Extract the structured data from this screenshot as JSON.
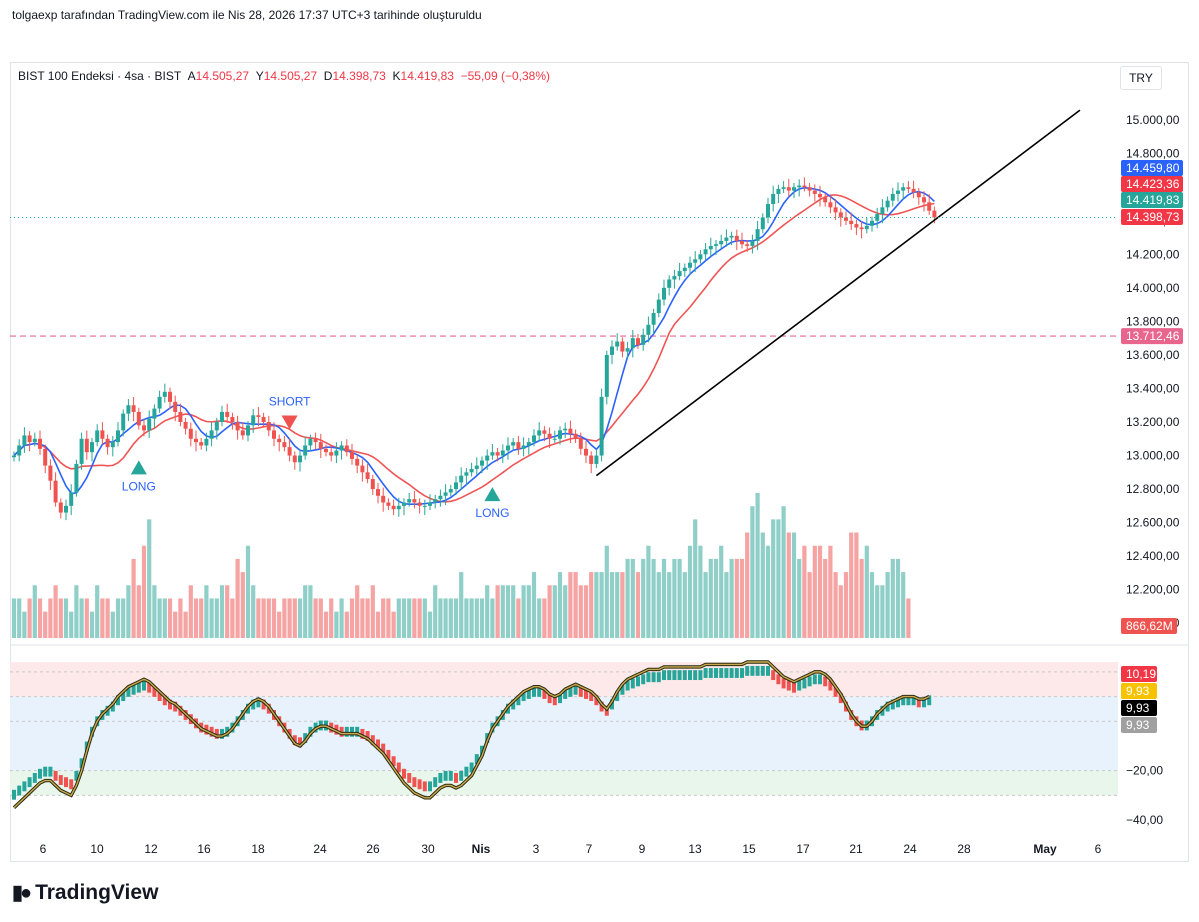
{
  "header": {
    "attribution": "tolgaexp tarafından TradingView.com ile Nis 28, 2026 17:37 UTC+3 tarihinde oluşturuldu"
  },
  "legend": {
    "symbol": "BIST 100 Endeksi · 4sa · BIST",
    "open_label": "A",
    "open": "14.505,27",
    "high_label": "Y",
    "high": "14.505,27",
    "low_label": "D",
    "low": "14.398,73",
    "close_label": "K",
    "close": "14.419,83",
    "change": "−55,09 (−0,38%)"
  },
  "currency": "TRY",
  "colors": {
    "up": "#26a69a",
    "down": "#ef5350",
    "up_volume": "#8fcfc8",
    "down_volume": "#f5a3a3",
    "ma_fast": "#2962ff",
    "ma_slow": "#f05454",
    "level": "#e8658e",
    "trendline": "#000000",
    "osc_line": "#7a6520",
    "signal": "#2962ff"
  },
  "logo": {
    "text": "TradingView",
    "icon": "tradingview-logo-icon"
  },
  "chart_data": [
    {
      "type": "candlestick",
      "x_ticks": [
        "6",
        "10",
        "12",
        "16",
        "18",
        "24",
        "26",
        "30",
        "Nis",
        "3",
        "7",
        "9",
        "13",
        "15",
        "17",
        "21",
        "24",
        "28",
        "May",
        "6"
      ],
      "y_ticks": [
        "15.000,00",
        "14.800,00",
        "14.600,00",
        "14.400,00",
        "14.200,00",
        "14.000,00",
        "13.800,00",
        "13.600,00",
        "13.400,00",
        "13.200,00",
        "13.000,00",
        "12.800,00",
        "12.600,00",
        "12.400,00",
        "12.200,00",
        "12.000,00"
      ],
      "ylim": [
        11900,
        15150
      ],
      "price_tags": [
        {
          "label": "14.459,80",
          "value": 14459.8,
          "color": "#2962ff"
        },
        {
          "label": "14.423,36",
          "value": 14423.36,
          "color": "#f23645"
        },
        {
          "label": "14.419,83",
          "value": 14419.83,
          "color": "#26a69a"
        },
        {
          "label": "14.398,73",
          "value": 14398.73,
          "color": "#f23645"
        }
      ],
      "horizontal_level": {
        "label": "13.712,46",
        "value": 13712.46
      },
      "volume_tag": "866,62M",
      "signals": [
        {
          "text": "LONG",
          "kind": "buy",
          "bar": 24
        },
        {
          "text": "SHORT",
          "kind": "sell",
          "bar": 53
        },
        {
          "text": "LONG",
          "kind": "buy",
          "bar": 92
        }
      ],
      "trendline": [
        {
          "bar": 112,
          "value": 12880
        },
        {
          "bar": 205,
          "value": 15060
        }
      ],
      "candles_close": [
        13000,
        13060,
        13120,
        13080,
        13100,
        13040,
        12940,
        12850,
        12720,
        12660,
        12700,
        12780,
        12950,
        13100,
        13020,
        13080,
        13150,
        13100,
        13050,
        13080,
        13150,
        13250,
        13300,
        13260,
        13180,
        13150,
        13220,
        13280,
        13350,
        13380,
        13320,
        13260,
        13200,
        13160,
        13100,
        13080,
        13060,
        13100,
        13150,
        13200,
        13260,
        13230,
        13200,
        13150,
        13120,
        13180,
        13240,
        13230,
        13200,
        13150,
        13100,
        13080,
        13050,
        13000,
        12960,
        13000,
        13060,
        13100,
        13080,
        13040,
        13020,
        13000,
        13030,
        13060,
        13020,
        12980,
        12940,
        12900,
        12860,
        12800,
        12760,
        12720,
        12700,
        12680,
        12700,
        12720,
        12740,
        12720,
        12700,
        12700,
        12720,
        12740,
        12760,
        12780,
        12800,
        12840,
        12880,
        12900,
        12920,
        12940,
        12970,
        13000,
        13020,
        13000,
        13030,
        13060,
        13080,
        13040,
        13060,
        13080,
        13120,
        13150,
        13130,
        13100,
        13100,
        13150,
        13160,
        13130,
        13100,
        13040,
        13000,
        12950,
        13000,
        13350,
        13600,
        13650,
        13680,
        13620,
        13640,
        13700,
        13660,
        13720,
        13780,
        13850,
        13930,
        14000,
        14050,
        14070,
        14100,
        14120,
        14150,
        14170,
        14200,
        14230,
        14250,
        14260,
        14280,
        14300,
        14310,
        14280,
        14260,
        14250,
        14280,
        14350,
        14420,
        14500,
        14560,
        14590,
        14600,
        14580,
        14600,
        14610,
        14600,
        14580,
        14560,
        14540,
        14510,
        14480,
        14450,
        14420,
        14400,
        14380,
        14360,
        14350,
        14370,
        14400,
        14440,
        14480,
        14520,
        14560,
        14580,
        14600,
        14590,
        14570,
        14540,
        14510,
        14460,
        14420
      ],
      "volume": [
        3,
        3,
        2,
        3,
        4,
        3,
        2,
        3,
        4,
        3,
        3,
        2,
        4,
        3,
        3,
        2,
        4,
        3,
        3,
        2,
        3,
        3,
        4,
        6,
        4,
        7,
        9,
        4,
        3,
        3,
        3,
        2,
        3,
        2,
        4,
        3,
        3,
        4,
        3,
        3,
        4,
        4,
        3,
        6,
        5,
        7,
        4,
        3,
        3,
        3,
        3,
        2,
        3,
        3,
        3,
        3,
        4,
        4,
        3,
        3,
        2,
        3,
        2,
        3,
        2,
        3,
        4,
        3,
        3,
        4,
        2,
        3,
        3,
        2,
        3,
        3,
        3,
        3,
        3,
        3,
        2,
        4,
        3,
        3,
        3,
        3,
        5,
        3,
        3,
        3,
        3,
        4,
        3,
        4,
        4,
        4,
        4,
        3,
        4,
        4,
        5,
        3,
        3,
        4,
        4,
        5,
        4,
        5,
        5,
        4,
        4,
        5,
        5,
        5,
        7,
        5,
        5,
        5,
        6,
        6,
        5,
        6,
        7,
        6,
        5,
        6,
        5,
        6,
        6,
        5,
        7,
        9,
        7,
        5,
        6,
        6,
        7,
        5,
        6,
        6,
        6,
        8,
        10,
        11,
        8,
        7,
        9,
        9,
        10,
        8,
        8,
        6,
        7,
        5,
        7,
        7,
        6,
        7,
        5,
        4,
        5,
        8,
        8,
        6,
        7,
        5,
        4,
        4,
        5,
        6,
        6,
        5,
        3
      ]
    },
    {
      "type": "oscillator",
      "y_ticks": [
        "0,00",
        "−20,00",
        "−40,00"
      ],
      "ylim": [
        -42,
        24
      ],
      "value_tags": [
        {
          "label": "10,19",
          "color": "#f23645"
        },
        {
          "label": "9,93",
          "color": "#f7c300"
        },
        {
          "label": "9,93",
          "color": "#000000"
        },
        {
          "label": "9,93",
          "color": "#a0a0a0"
        }
      ],
      "zones": {
        "upper": [
          10,
          20
        ],
        "lower": [
          -30,
          -20
        ]
      },
      "osc_line": [
        -35,
        -33,
        -31,
        -29,
        -27,
        -25,
        -24,
        -24,
        -26,
        -28,
        -29,
        -30,
        -26,
        -20,
        -12,
        -5,
        0,
        3,
        5,
        7,
        10,
        12,
        14,
        15,
        16,
        17,
        16,
        14,
        12,
        10,
        8,
        7,
        5,
        3,
        1,
        -1,
        -3,
        -4,
        -5,
        -6,
        -6,
        -5,
        -3,
        0,
        3,
        6,
        8,
        9,
        8,
        6,
        3,
        0,
        -3,
        -6,
        -9,
        -10,
        -8,
        -5,
        -3,
        -2,
        -2,
        -3,
        -4,
        -5,
        -5,
        -5,
        -5,
        -6,
        -7,
        -9,
        -11,
        -13,
        -16,
        -19,
        -22,
        -25,
        -27,
        -29,
        -30,
        -31,
        -31,
        -29,
        -27,
        -26,
        -26,
        -27,
        -26,
        -24,
        -22,
        -18,
        -14,
        -8,
        -3,
        0,
        3,
        6,
        8,
        10,
        12,
        13,
        14,
        14,
        13,
        11,
        10,
        11,
        13,
        14,
        15,
        14,
        13,
        12,
        10,
        7,
        5,
        8,
        12,
        15,
        17,
        18,
        19,
        20,
        21,
        21,
        21,
        22,
        22,
        22,
        22,
        22,
        22,
        22,
        22,
        23,
        23,
        23,
        23,
        23,
        23,
        23,
        23,
        24,
        24,
        24,
        24,
        24,
        22,
        20,
        18,
        17,
        16,
        17,
        18,
        19,
        20,
        20,
        19,
        17,
        14,
        11,
        7,
        3,
        0,
        -2,
        -2,
        0,
        3,
        5,
        7,
        8,
        9,
        10,
        10,
        10,
        9,
        9,
        10
      ]
    }
  ]
}
